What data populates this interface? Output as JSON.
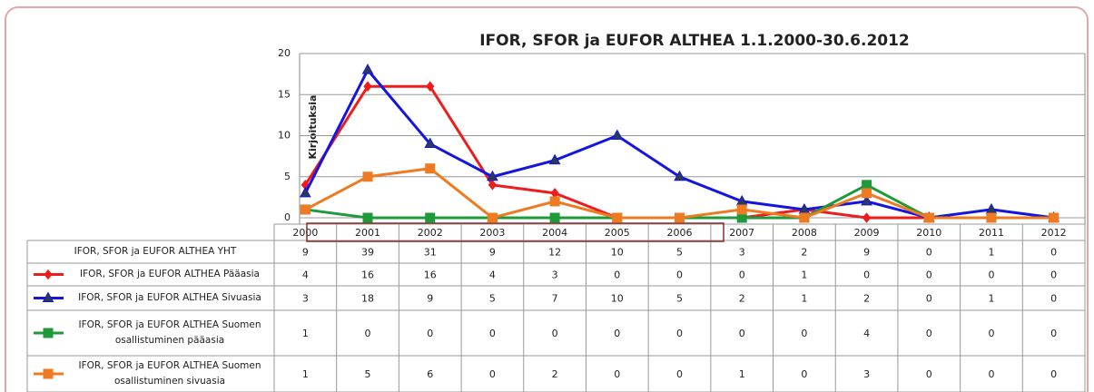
{
  "chart_data": {
    "type": "line",
    "title": "IFOR, SFOR ja EUFOR ALTHEA 1.1.2000-30.6.2012",
    "y_label": "Kirjoituksia",
    "categories": [
      "2000",
      "2001",
      "2002",
      "2003",
      "2004",
      "2005",
      "2006",
      "2007",
      "2008",
      "2009",
      "2010",
      "2011",
      "2012"
    ],
    "series": [
      {
        "name": "IFOR, SFOR ja EUFOR ALTHEA YHT",
        "values": [
          9,
          39,
          31,
          9,
          12,
          10,
          5,
          3,
          2,
          9,
          0,
          1,
          0
        ]
      },
      {
        "name": "IFOR, SFOR ja EUFOR ALTHEA Pääasia",
        "color": "#ee1c1c",
        "marker": "diamond",
        "values": [
          4,
          16,
          16,
          4,
          3,
          0,
          0,
          0,
          1,
          0,
          0,
          0,
          0
        ]
      },
      {
        "name": "IFOR, SFOR ja EUFOR ALTHEA Sivuasia",
        "color": "#1515e0",
        "marker": "triangle",
        "values": [
          3,
          18,
          9,
          5,
          7,
          10,
          5,
          2,
          1,
          2,
          0,
          1,
          0
        ]
      },
      {
        "name": "IFOR, SFOR ja EUFOR ALTHEA Suomen osallistuminen pääasia",
        "color": "#1f9a3a",
        "marker": "square",
        "values": [
          1,
          0,
          0,
          0,
          0,
          0,
          0,
          0,
          0,
          4,
          0,
          0,
          0
        ]
      },
      {
        "name": "IFOR, SFOR ja EUFOR ALTHEA Suomen osallistuminen sivuasia",
        "color": "#ee7a22",
        "marker": "square",
        "values": [
          1,
          5,
          6,
          0,
          2,
          0,
          0,
          1,
          0,
          3,
          0,
          0,
          0
        ]
      }
    ],
    "ylim": [
      0,
      20
    ],
    "yticks": [
      0,
      5,
      10,
      15,
      20
    ],
    "grid": true
  }
}
